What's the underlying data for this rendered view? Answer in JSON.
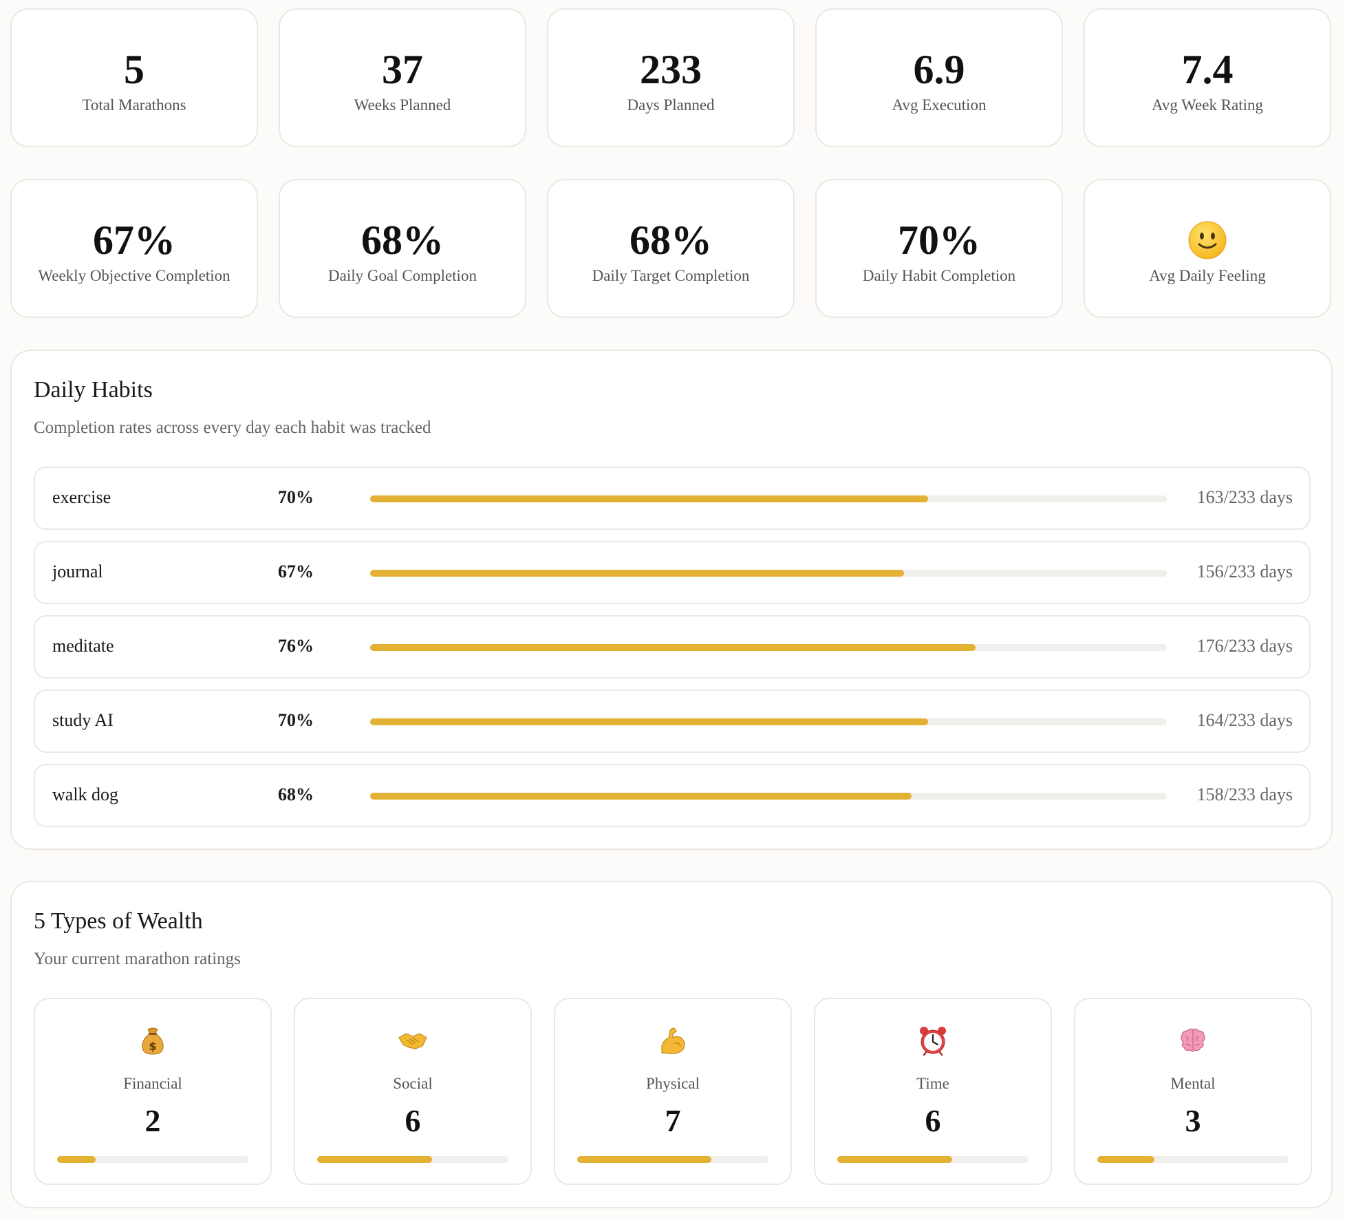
{
  "stats_row1": [
    {
      "value": "5",
      "label": "Total Marathons"
    },
    {
      "value": "37",
      "label": "Weeks Planned"
    },
    {
      "value": "233",
      "label": "Days Planned"
    },
    {
      "value": "6.9",
      "label": "Avg Execution"
    },
    {
      "value": "7.4",
      "label": "Avg Week Rating"
    }
  ],
  "stats_row2": [
    {
      "value": "67%",
      "label": "Weekly Objective Completion"
    },
    {
      "value": "68%",
      "label": "Daily Goal Completion"
    },
    {
      "value": "68%",
      "label": "Daily Target Completion"
    },
    {
      "value": "70%",
      "label": "Daily Habit Completion"
    },
    {
      "icon": "slightly-smiling-face-icon",
      "label": "Avg Daily Feeling"
    }
  ],
  "habits": {
    "title": "Daily Habits",
    "subtitle": "Completion rates across every day each habit was tracked",
    "items": [
      {
        "name": "exercise",
        "pct": "70%",
        "days": "163/233 days",
        "fill": 0.7
      },
      {
        "name": "journal",
        "pct": "67%",
        "days": "156/233 days",
        "fill": 0.67
      },
      {
        "name": "meditate",
        "pct": "76%",
        "days": "176/233 days",
        "fill": 0.76
      },
      {
        "name": "study AI",
        "pct": "70%",
        "days": "164/233 days",
        "fill": 0.7
      },
      {
        "name": "walk dog",
        "pct": "68%",
        "days": "158/233 days",
        "fill": 0.68
      }
    ]
  },
  "wealth": {
    "title": "5 Types of Wealth",
    "subtitle": "Your current marathon ratings",
    "items": [
      {
        "icon": "money-bag-icon",
        "label": "Financial",
        "value": "2",
        "fill": 0.2
      },
      {
        "icon": "handshake-icon",
        "label": "Social",
        "value": "6",
        "fill": 0.6
      },
      {
        "icon": "flexed-bicep-icon",
        "label": "Physical",
        "value": "7",
        "fill": 0.7
      },
      {
        "icon": "alarm-clock-icon",
        "label": "Time",
        "value": "6",
        "fill": 0.6
      },
      {
        "icon": "brain-icon",
        "label": "Mental",
        "value": "3",
        "fill": 0.3
      }
    ]
  },
  "colors": {
    "accent": "#e3b134",
    "track": "#f1efec",
    "border": "#ebe7e1",
    "background": "#fcfbf9"
  }
}
